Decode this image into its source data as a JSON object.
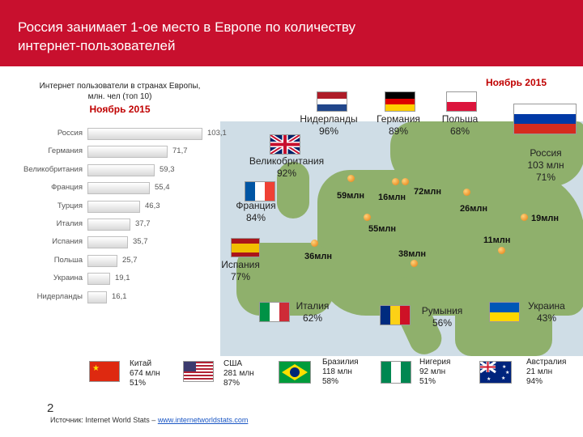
{
  "header": {
    "title_line1": "Россия занимает 1-ое место в Европе по количеству",
    "title_line2": " интернет-пользователей"
  },
  "chart_data": {
    "type": "bar",
    "title": "Интернет пользователи в странах Европы, млн. чел (топ 10)",
    "subtitle": "Ноябрь 2015",
    "categories": [
      "Россия",
      "Германия",
      "Великобритания",
      "Франция",
      "Турция",
      "Италия",
      "Испания",
      "Польша",
      "Украина",
      "Нидерланды"
    ],
    "values": [
      103.1,
      71.7,
      59.3,
      55.4,
      46.3,
      37.7,
      35.7,
      25.7,
      19.1,
      16.1
    ],
    "value_labels": [
      "103,1",
      "71,7",
      "59,3",
      "55,4",
      "46,3",
      "37,7",
      "35,7",
      "25,7",
      "19,1",
      "16,1"
    ],
    "xlim": [
      0,
      110
    ]
  },
  "chart_text": {
    "title_line1": "Интернет пользователи в странах Европы,",
    "title_line2": "млн. чел (топ 10)",
    "date": "Ноябрь 2015"
  },
  "date_label": "Ноябрь 2015",
  "map_countries": {
    "netherlands": {
      "name": "Нидерланды",
      "pct": "96%"
    },
    "germany": {
      "name": "Германия",
      "pct": "89%"
    },
    "poland": {
      "name": "Польша",
      "pct": "68%"
    },
    "uk": {
      "name": "Великобритания",
      "pct": "92%"
    },
    "russia": {
      "name": "Россия",
      "users": "103 млн",
      "pct": "71%"
    },
    "france": {
      "name": "Франция",
      "pct": "84%"
    },
    "spain": {
      "name": "Испания",
      "pct": "77%"
    },
    "italy": {
      "name": "Италия",
      "pct": "62%"
    },
    "romania": {
      "name": "Румыния",
      "pct": "56%"
    },
    "ukraine": {
      "name": "Украина",
      "pct": "43%"
    }
  },
  "map_values": {
    "uk": "59млн",
    "nl": "16млн",
    "de": "72млн",
    "pl": "26млн",
    "ua": "19млн",
    "fr": "55млн",
    "ro": "11млн",
    "es": "36млн",
    "it": "38млн"
  },
  "world": {
    "china": {
      "name": "Китай",
      "users": "674 млн",
      "pct": "51%"
    },
    "usa": {
      "name": "США",
      "users": "281 млн",
      "pct": "87%"
    },
    "brazil": {
      "name": "Бразилия",
      "users": "118 млн",
      "pct": "58%"
    },
    "nigeria": {
      "name": "Нигерия",
      "users": "92 млн",
      "pct": "51%"
    },
    "australia": {
      "name": "Австралия",
      "users": "21 млн",
      "pct": "94%"
    }
  },
  "page_number": "2",
  "source": {
    "text": "Источник: Internet World Stats – ",
    "link": "www.internetworldstats.com"
  },
  "colors": {
    "header": "#c8102e",
    "accent_red": "#c00000",
    "marker": "#e57a0c"
  }
}
